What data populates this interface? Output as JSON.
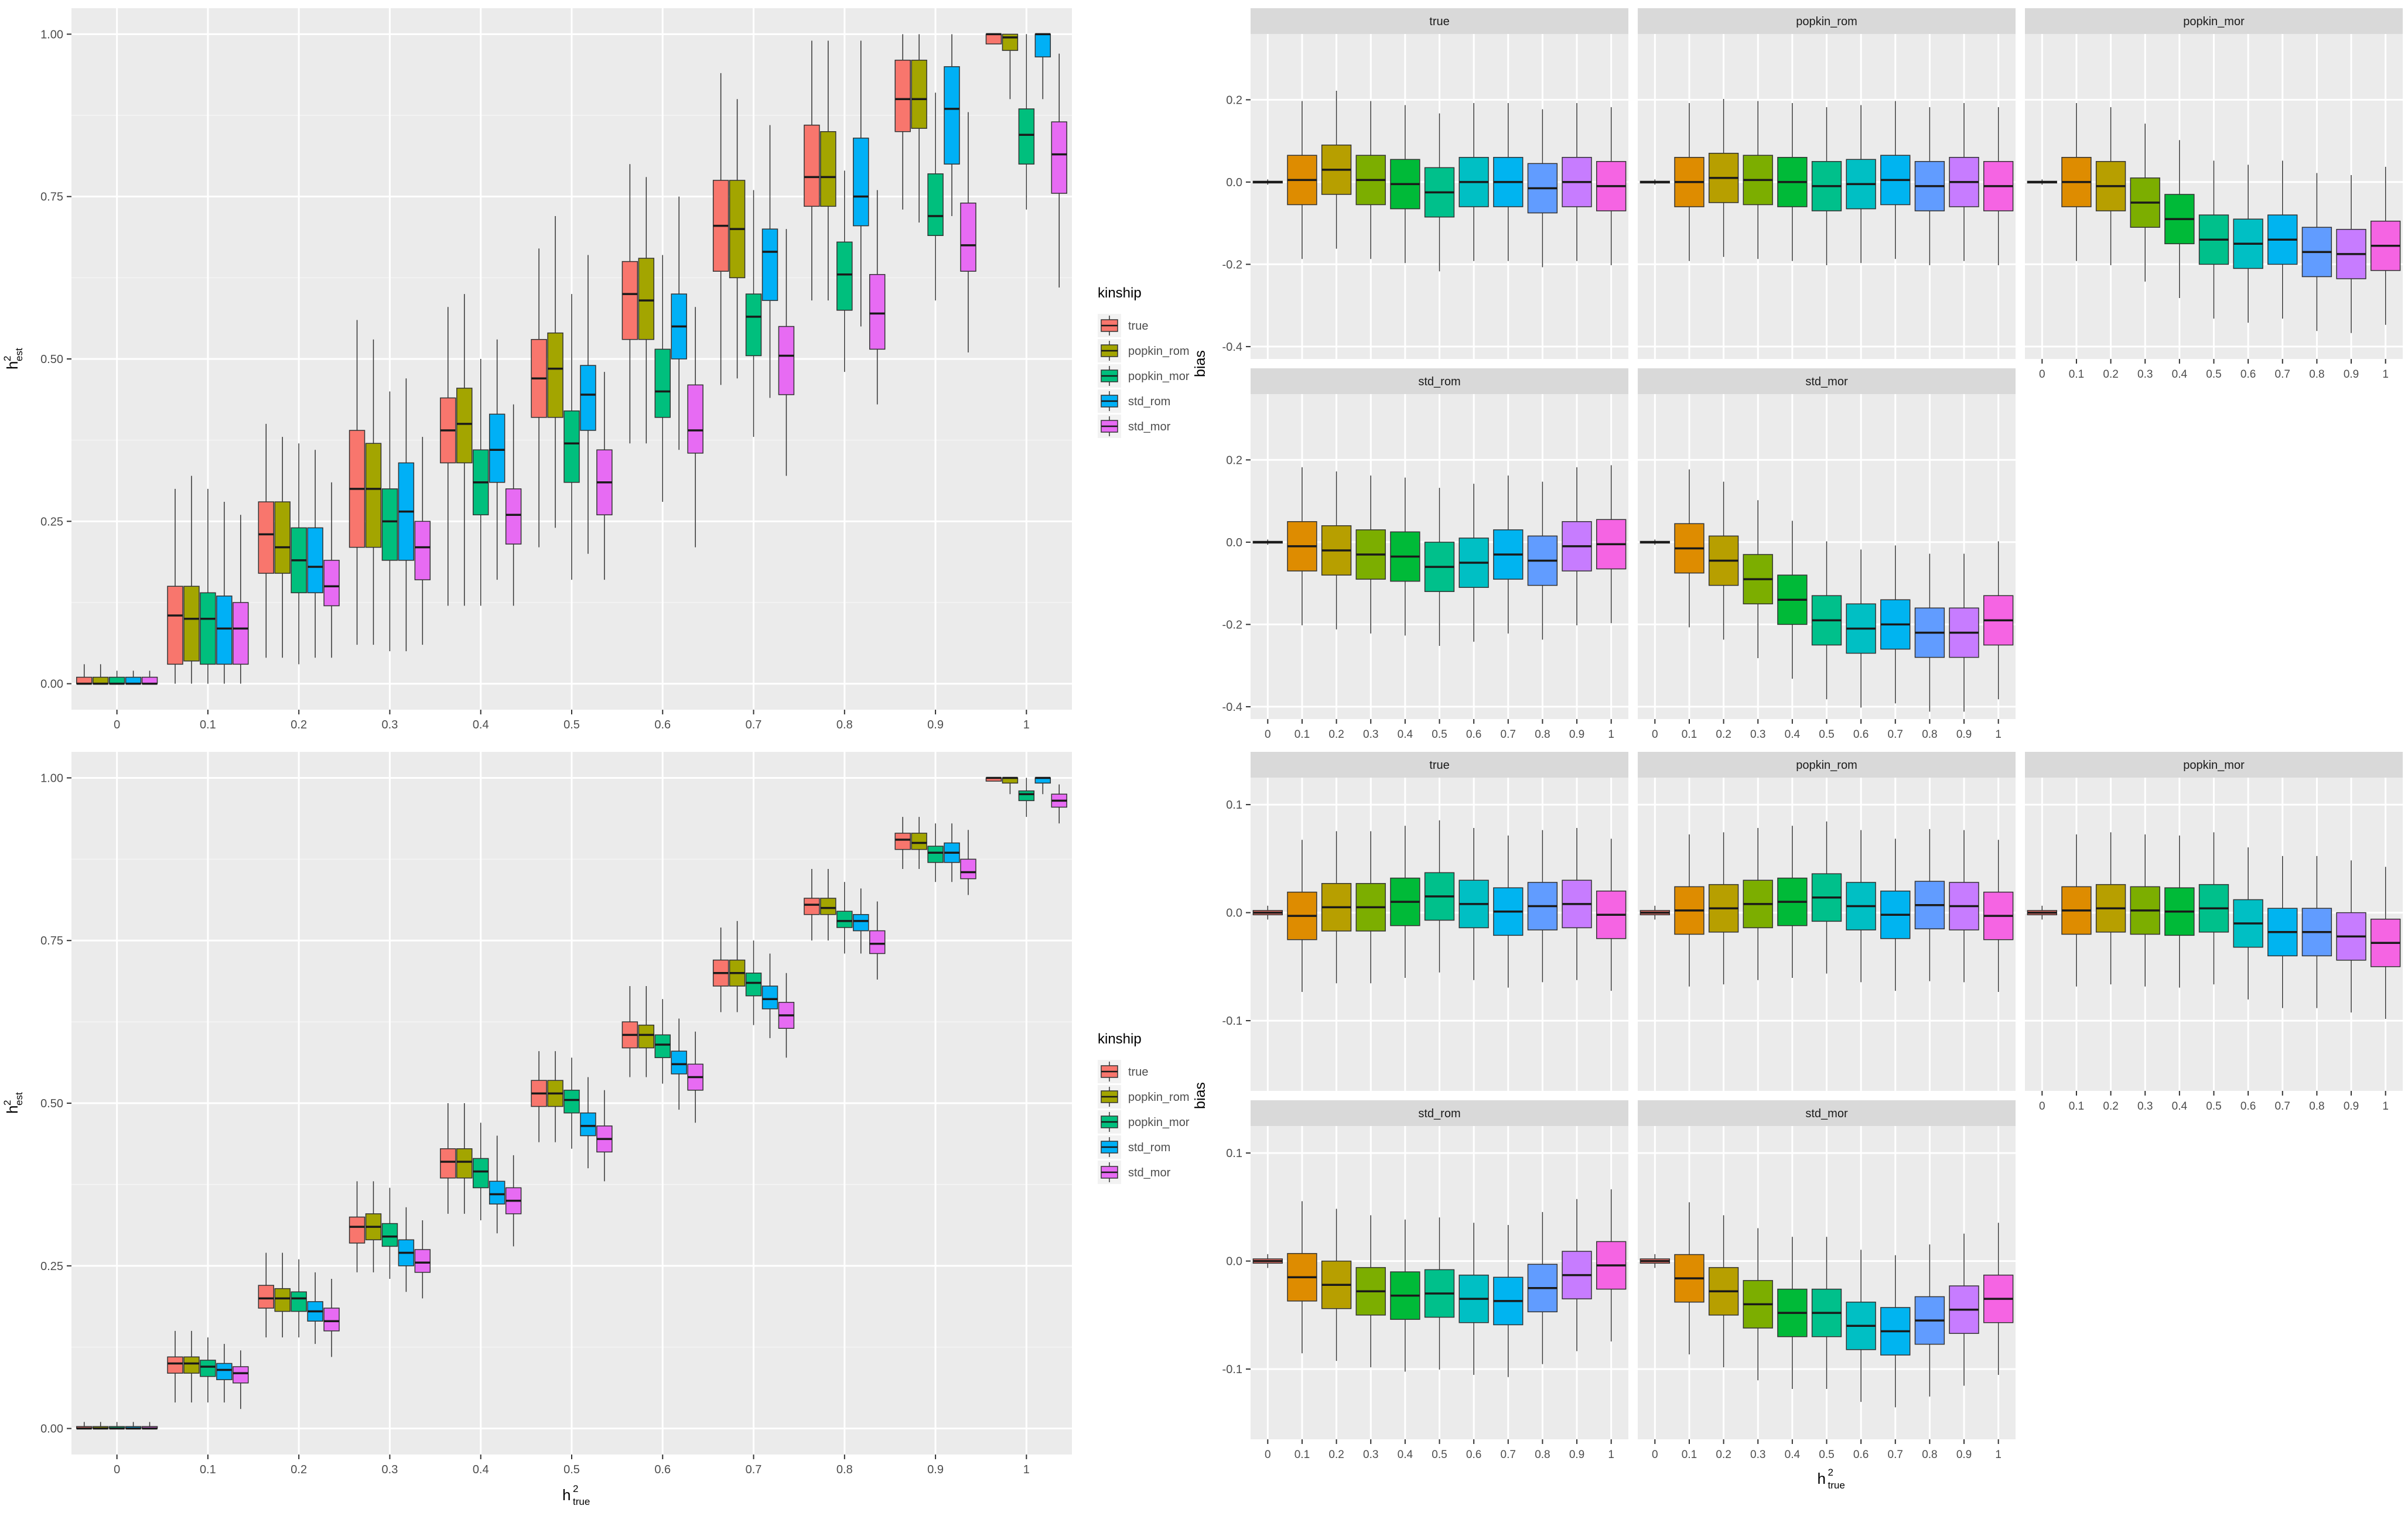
{
  "colors": {
    "panel_bg": "#EBEBEB",
    "grid_major": "#FFFFFF",
    "strip_bg": "#D9D9D9",
    "text": "#4D4D4D",
    "title_text": "#000000",
    "median": "#1A1A1A",
    "outlier": "#333333"
  },
  "legend": {
    "title": "kinship",
    "keys": [
      "true",
      "popkin_rom",
      "popkin_mor",
      "std_rom",
      "std_mor"
    ],
    "colors": [
      "#F8766D",
      "#A3A500",
      "#00BF7D",
      "#00B0F6",
      "#E76BF3"
    ]
  },
  "facet_palette": [
    "#F8766D",
    "#DE8C00",
    "#B79F00",
    "#7CAE00",
    "#00BA38",
    "#00C08B",
    "#00BFC4",
    "#00B4F0",
    "#619CFF",
    "#C77CFF",
    "#F564E3",
    "#FF64B0"
  ],
  "facet_labels": [
    "true",
    "popkin_rom",
    "popkin_mor",
    "std_rom",
    "std_mor"
  ],
  "axis_labels": {
    "x_main": "h",
    "x_sup": "2",
    "x_sub": "true",
    "y_main": "h",
    "y_sup": "2",
    "y_sub": "est",
    "bias": "bias"
  },
  "x_ticks": [
    "0",
    "0.1",
    "0.2",
    "0.3",
    "0.4",
    "0.5",
    "0.6",
    "0.7",
    "0.8",
    "0.9",
    "1"
  ],
  "chart_data": [
    {
      "id": "scatter_top",
      "type": "box",
      "title": "",
      "xlabel": "h²_true",
      "ylabel": "h²_est",
      "categories": [
        "0",
        "0.1",
        "0.2",
        "0.3",
        "0.4",
        "0.5",
        "0.6",
        "0.7",
        "0.8",
        "0.9",
        "1"
      ],
      "ylim": [
        -0.04,
        1.04
      ],
      "yticks": [
        "0.00",
        "0.25",
        "0.50",
        "0.75",
        "1.00"
      ],
      "legend_position": "right",
      "grid": true,
      "series_names": [
        "true",
        "popkin_rom",
        "popkin_mor",
        "std_rom",
        "std_mor"
      ],
      "boxes": [
        [
          [
            0,
            0,
            0,
            0.01,
            0.03
          ],
          [
            0,
            0,
            0,
            0.01,
            0.03
          ],
          [
            0,
            0,
            0,
            0.01,
            0.02
          ],
          [
            0,
            0,
            0,
            0.01,
            0.02
          ],
          [
            0,
            0,
            0,
            0.01,
            0.02
          ]
        ],
        [
          [
            0,
            0.03,
            0.105,
            0.15,
            0.3
          ],
          [
            0,
            0.035,
            0.1,
            0.15,
            0.32
          ],
          [
            0,
            0.03,
            0.1,
            0.14,
            0.3
          ],
          [
            0,
            0.03,
            0.085,
            0.135,
            0.28
          ],
          [
            0,
            0.03,
            0.085,
            0.125,
            0.26
          ]
        ],
        [
          [
            0.04,
            0.17,
            0.23,
            0.28,
            0.4
          ],
          [
            0.04,
            0.17,
            0.21,
            0.28,
            0.38
          ],
          [
            0.03,
            0.14,
            0.19,
            0.24,
            0.37
          ],
          [
            0.04,
            0.14,
            0.18,
            0.24,
            0.36
          ],
          [
            0.04,
            0.12,
            0.15,
            0.19,
            0.31
          ]
        ],
        [
          [
            0.06,
            0.21,
            0.3,
            0.39,
            0.56
          ],
          [
            0.06,
            0.21,
            0.3,
            0.37,
            0.53
          ],
          [
            0.05,
            0.19,
            0.25,
            0.3,
            0.45
          ],
          [
            0.05,
            0.19,
            0.265,
            0.34,
            0.47
          ],
          [
            0.06,
            0.16,
            0.21,
            0.25,
            0.38
          ]
        ],
        [
          [
            0.12,
            0.34,
            0.39,
            0.44,
            0.58
          ],
          [
            0.12,
            0.34,
            0.4,
            0.455,
            0.6
          ],
          [
            0.12,
            0.26,
            0.31,
            0.36,
            0.5
          ],
          [
            0.16,
            0.31,
            0.36,
            0.415,
            0.53
          ],
          [
            0.12,
            0.215,
            0.26,
            0.3,
            0.43
          ]
        ],
        [
          [
            0.21,
            0.41,
            0.47,
            0.53,
            0.67
          ],
          [
            0.24,
            0.41,
            0.485,
            0.54,
            0.72
          ],
          [
            0.16,
            0.31,
            0.37,
            0.42,
            0.6
          ],
          [
            0.2,
            0.39,
            0.445,
            0.49,
            0.66
          ],
          [
            0.16,
            0.26,
            0.31,
            0.36,
            0.48
          ]
        ],
        [
          [
            0.37,
            0.53,
            0.6,
            0.65,
            0.8
          ],
          [
            0.37,
            0.53,
            0.59,
            0.655,
            0.78
          ],
          [
            0.28,
            0.41,
            0.45,
            0.515,
            0.66
          ],
          [
            0.36,
            0.5,
            0.55,
            0.6,
            0.75
          ],
          [
            0.21,
            0.355,
            0.39,
            0.46,
            0.58
          ]
        ],
        [
          [
            0.46,
            0.635,
            0.705,
            0.775,
            0.94
          ],
          [
            0.47,
            0.625,
            0.7,
            0.775,
            0.9
          ],
          [
            0.38,
            0.505,
            0.565,
            0.6,
            0.76
          ],
          [
            0.44,
            0.59,
            0.665,
            0.7,
            0.86
          ],
          [
            0.32,
            0.445,
            0.505,
            0.55,
            0.7
          ]
        ],
        [
          [
            0.59,
            0.735,
            0.78,
            0.86,
            0.99
          ],
          [
            0.59,
            0.735,
            0.78,
            0.85,
            0.99
          ],
          [
            0.48,
            0.575,
            0.63,
            0.68,
            0.79
          ],
          [
            0.55,
            0.705,
            0.75,
            0.84,
            0.99
          ],
          [
            0.43,
            0.515,
            0.57,
            0.63,
            0.76
          ]
        ],
        [
          [
            0.73,
            0.85,
            0.9,
            0.96,
            1.0
          ],
          [
            0.71,
            0.855,
            0.9,
            0.96,
            1.0
          ],
          [
            0.59,
            0.69,
            0.72,
            0.785,
            0.91
          ],
          [
            0.72,
            0.8,
            0.885,
            0.95,
            1.0
          ],
          [
            0.51,
            0.635,
            0.675,
            0.74,
            0.88
          ]
        ],
        [
          [
            1.0,
            0.985,
            1.0,
            1.0,
            1.0
          ],
          [
            0.9,
            0.975,
            0.995,
            1.0,
            1.0
          ],
          [
            0.73,
            0.8,
            0.845,
            0.885,
            1.0
          ],
          [
            0.9,
            0.965,
            1.0,
            1.0,
            1.0
          ],
          [
            0.61,
            0.755,
            0.815,
            0.865,
            0.97
          ]
        ]
      ]
    },
    {
      "id": "scatter_bottom",
      "type": "box",
      "title": "",
      "xlabel": "h²_true",
      "ylabel": "h²_est",
      "categories": [
        "0",
        "0.1",
        "0.2",
        "0.3",
        "0.4",
        "0.5",
        "0.6",
        "0.7",
        "0.8",
        "0.9",
        "1"
      ],
      "ylim": [
        -0.04,
        1.04
      ],
      "yticks": [
        "0.00",
        "0.25",
        "0.50",
        "0.75",
        "1.00"
      ],
      "legend_position": "right",
      "grid": true,
      "series_names": [
        "true",
        "popkin_rom",
        "popkin_mor",
        "std_rom",
        "std_mor"
      ],
      "boxes": [
        [
          [
            0,
            0,
            0,
            0.003,
            0.01
          ],
          [
            0,
            0,
            0,
            0.003,
            0.01
          ],
          [
            0,
            0,
            0,
            0.003,
            0.01
          ],
          [
            0,
            0,
            0,
            0.003,
            0.01
          ],
          [
            0,
            0,
            0,
            0.003,
            0.01
          ]
        ],
        [
          [
            0.04,
            0.085,
            0.1,
            0.11,
            0.15
          ],
          [
            0.04,
            0.085,
            0.1,
            0.11,
            0.15
          ],
          [
            0.04,
            0.08,
            0.095,
            0.105,
            0.14
          ],
          [
            0.04,
            0.075,
            0.09,
            0.1,
            0.13
          ],
          [
            0.03,
            0.07,
            0.085,
            0.095,
            0.12
          ]
        ],
        [
          [
            0.14,
            0.185,
            0.2,
            0.22,
            0.27
          ],
          [
            0.14,
            0.18,
            0.2,
            0.215,
            0.27
          ],
          [
            0.14,
            0.18,
            0.2,
            0.21,
            0.26
          ],
          [
            0.13,
            0.165,
            0.18,
            0.195,
            0.24
          ],
          [
            0.11,
            0.15,
            0.165,
            0.185,
            0.23
          ]
        ],
        [
          [
            0.24,
            0.285,
            0.31,
            0.325,
            0.38
          ],
          [
            0.24,
            0.29,
            0.31,
            0.33,
            0.38
          ],
          [
            0.23,
            0.28,
            0.295,
            0.315,
            0.37
          ],
          [
            0.21,
            0.25,
            0.27,
            0.29,
            0.34
          ],
          [
            0.2,
            0.24,
            0.255,
            0.275,
            0.32
          ]
        ],
        [
          [
            0.33,
            0.385,
            0.41,
            0.43,
            0.5
          ],
          [
            0.33,
            0.385,
            0.41,
            0.43,
            0.5
          ],
          [
            0.32,
            0.37,
            0.395,
            0.415,
            0.47
          ],
          [
            0.3,
            0.345,
            0.36,
            0.38,
            0.45
          ],
          [
            0.28,
            0.33,
            0.35,
            0.37,
            0.42
          ]
        ],
        [
          [
            0.44,
            0.495,
            0.515,
            0.535,
            0.58
          ],
          [
            0.44,
            0.495,
            0.515,
            0.535,
            0.58
          ],
          [
            0.43,
            0.485,
            0.505,
            0.52,
            0.57
          ],
          [
            0.4,
            0.45,
            0.465,
            0.485,
            0.54
          ],
          [
            0.38,
            0.425,
            0.445,
            0.465,
            0.52
          ]
        ],
        [
          [
            0.54,
            0.585,
            0.605,
            0.625,
            0.68
          ],
          [
            0.54,
            0.585,
            0.605,
            0.62,
            0.68
          ],
          [
            0.53,
            0.57,
            0.59,
            0.605,
            0.66
          ],
          [
            0.49,
            0.545,
            0.56,
            0.58,
            0.63
          ],
          [
            0.47,
            0.52,
            0.54,
            0.56,
            0.61
          ]
        ],
        [
          [
            0.64,
            0.68,
            0.7,
            0.72,
            0.77
          ],
          [
            0.64,
            0.68,
            0.7,
            0.72,
            0.78
          ],
          [
            0.62,
            0.665,
            0.685,
            0.7,
            0.75
          ],
          [
            0.6,
            0.645,
            0.66,
            0.68,
            0.73
          ],
          [
            0.57,
            0.615,
            0.635,
            0.655,
            0.7
          ]
        ],
        [
          [
            0.75,
            0.79,
            0.805,
            0.815,
            0.86
          ],
          [
            0.75,
            0.79,
            0.8,
            0.815,
            0.86
          ],
          [
            0.73,
            0.77,
            0.78,
            0.795,
            0.84
          ],
          [
            0.73,
            0.765,
            0.78,
            0.79,
            0.83
          ],
          [
            0.69,
            0.73,
            0.745,
            0.765,
            0.81
          ]
        ],
        [
          [
            0.86,
            0.89,
            0.905,
            0.915,
            0.94
          ],
          [
            0.86,
            0.89,
            0.9,
            0.915,
            0.94
          ],
          [
            0.84,
            0.87,
            0.885,
            0.895,
            0.93
          ],
          [
            0.84,
            0.87,
            0.885,
            0.9,
            0.93
          ],
          [
            0.82,
            0.845,
            0.855,
            0.875,
            0.92
          ]
        ],
        [
          [
            1.0,
            0.995,
            1.0,
            1.0,
            1.0
          ],
          [
            0.975,
            0.992,
            1.0,
            1.0,
            1.0
          ],
          [
            0.94,
            0.965,
            0.975,
            0.98,
            1.0
          ],
          [
            0.975,
            0.992,
            1.0,
            1.0,
            1.0
          ],
          [
            0.93,
            0.955,
            0.965,
            0.975,
            0.99
          ]
        ]
      ]
    },
    {
      "id": "bias_top",
      "type": "box",
      "title": "",
      "xlabel": "h²_true",
      "ylabel": "bias",
      "facets": [
        "true",
        "popkin_rom",
        "popkin_mor",
        "std_rom",
        "std_mor"
      ],
      "categories": [
        "0",
        "0.1",
        "0.2",
        "0.3",
        "0.4",
        "0.5",
        "0.6",
        "0.7",
        "0.8",
        "0.9",
        "1"
      ],
      "ylim": [
        -0.43,
        0.36
      ],
      "yticks": [
        "-0.4",
        "-0.2",
        "0.0",
        "0.2"
      ],
      "medians": [
        [
          0,
          0.005,
          0.03,
          0.005,
          -0.005,
          -0.025,
          0,
          0,
          -0.015,
          0,
          -0.01
        ],
        [
          0,
          0,
          0.01,
          0.005,
          0,
          -0.01,
          -0.005,
          0.005,
          -0.01,
          0,
          -0.01
        ],
        [
          0,
          0,
          -0.01,
          -0.05,
          -0.09,
          -0.14,
          -0.15,
          -0.14,
          -0.17,
          -0.175,
          -0.155
        ],
        [
          0,
          -0.01,
          -0.02,
          -0.03,
          -0.035,
          -0.06,
          -0.05,
          -0.03,
          -0.045,
          -0.01,
          -0.005
        ],
        [
          0,
          -0.015,
          -0.045,
          -0.09,
          -0.14,
          -0.19,
          -0.21,
          -0.2,
          -0.22,
          -0.22,
          -0.19
        ]
      ]
    },
    {
      "id": "bias_bottom",
      "type": "box",
      "title": "",
      "xlabel": "h²_true",
      "ylabel": "bias",
      "facets": [
        "true",
        "popkin_rom",
        "popkin_mor",
        "std_rom",
        "std_mor"
      ],
      "categories": [
        "0",
        "0.1",
        "0.2",
        "0.3",
        "0.4",
        "0.5",
        "0.6",
        "0.7",
        "0.8",
        "0.9",
        "1"
      ],
      "ylim": [
        -0.165,
        0.125
      ],
      "yticks": [
        "-0.1",
        "0.0",
        "0.1"
      ],
      "medians": [
        [
          0,
          -0.003,
          0.005,
          0.005,
          0.01,
          0.015,
          0.008,
          0.001,
          0.006,
          0.008,
          -0.002
        ],
        [
          0,
          0.002,
          0.004,
          0.008,
          0.01,
          0.014,
          0.006,
          -0.002,
          0.007,
          0.006,
          -0.003
        ],
        [
          0,
          0.002,
          0.004,
          0.002,
          0.001,
          0.004,
          -0.01,
          -0.018,
          -0.018,
          -0.022,
          -0.028
        ],
        [
          0,
          -0.015,
          -0.022,
          -0.028,
          -0.032,
          -0.03,
          -0.035,
          -0.037,
          -0.025,
          -0.013,
          -0.004
        ],
        [
          0,
          -0.016,
          -0.028,
          -0.04,
          -0.048,
          -0.048,
          -0.06,
          -0.065,
          -0.055,
          -0.045,
          -0.035
        ]
      ]
    }
  ]
}
